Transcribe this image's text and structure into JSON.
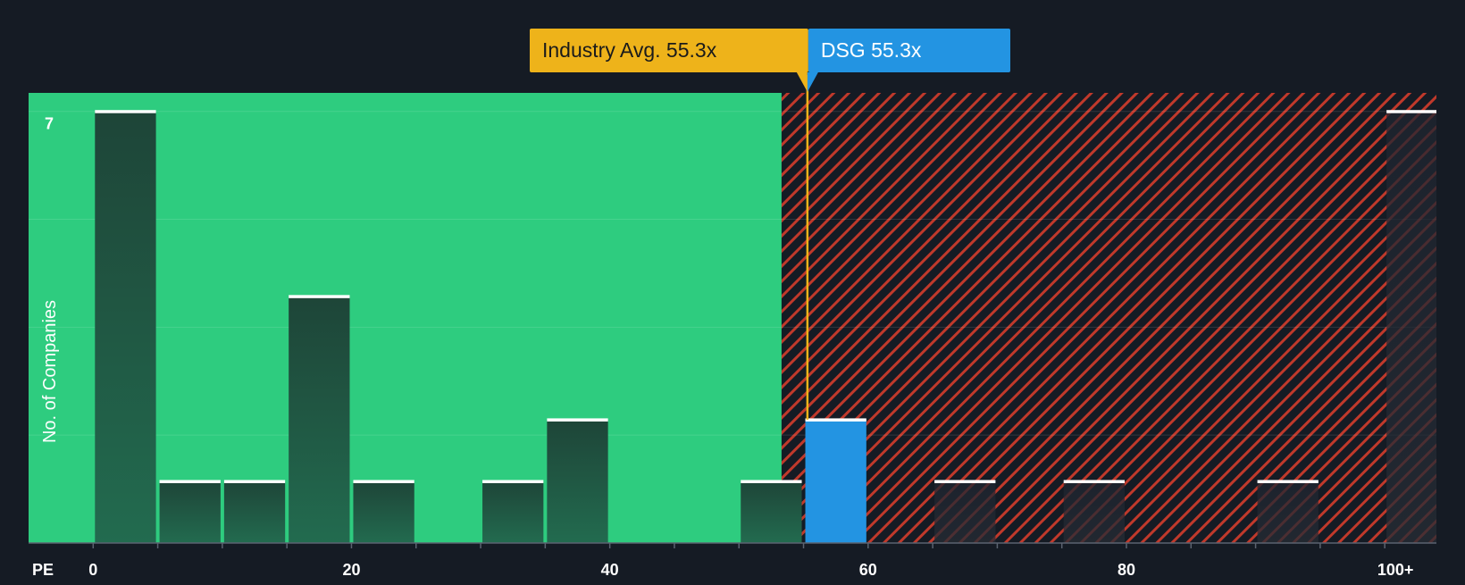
{
  "colors": {
    "background": "#151b24",
    "fair_zone": "#2ecc7f",
    "overvalued_zone": "#c0392b",
    "bar": "#1f4a3c",
    "highlight_bar": "#2394e2",
    "industry_label": "#eeb31a",
    "company_label": "#2394e2"
  },
  "chart_data": {
    "type": "bar",
    "xlabel": "PE",
    "ylabel": "No. of Companies",
    "xlim": [
      -5,
      104
    ],
    "ylim": [
      0,
      7.3
    ],
    "x_ticks": [
      {
        "value": 0,
        "label": "0"
      },
      {
        "value": 20,
        "label": "20"
      },
      {
        "value": 40,
        "label": "40"
      },
      {
        "value": 60,
        "label": "60"
      },
      {
        "value": 80,
        "label": "80"
      },
      {
        "value": 100,
        "label": "100+"
      }
    ],
    "y_tick_label": {
      "value": 7,
      "label": "7"
    },
    "gridlines": [
      1.75,
      3.5,
      5.25,
      7
    ],
    "bins": [
      {
        "start": 0,
        "end": 5,
        "count": 7
      },
      {
        "start": 5,
        "end": 10,
        "count": 1
      },
      {
        "start": 10,
        "end": 15,
        "count": 1
      },
      {
        "start": 15,
        "end": 20,
        "count": 4
      },
      {
        "start": 20,
        "end": 25,
        "count": 1
      },
      {
        "start": 30,
        "end": 35,
        "count": 1
      },
      {
        "start": 35,
        "end": 40,
        "count": 2
      },
      {
        "start": 50,
        "end": 55,
        "count": 1
      },
      {
        "start": 55,
        "end": 60,
        "count": 2,
        "highlight": true
      },
      {
        "start": 65,
        "end": 70,
        "count": 1
      },
      {
        "start": 75,
        "end": 80,
        "count": 1
      },
      {
        "start": 90,
        "end": 95,
        "count": 1
      },
      {
        "start": 100,
        "end": 105,
        "count": 7
      }
    ],
    "fair_value_boundary": 53.3,
    "industry_avg": {
      "value": 55.3,
      "label": "Industry Avg. 55.3x"
    },
    "company": {
      "value": 55.3,
      "label": "DSG 55.3x"
    }
  }
}
